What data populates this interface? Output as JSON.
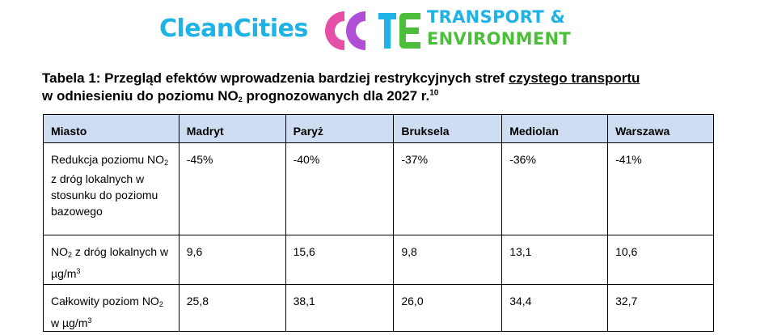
{
  "logos": {
    "cleancities": "CleanCities",
    "te_line1": "TRANSPORT &",
    "te_line2": "ENVIRONMENT",
    "colors": {
      "blue": "#1fb3e5",
      "pink": "#e64fa8",
      "purple": "#b04fd6",
      "green": "#4bbf3a"
    }
  },
  "caption": {
    "part1": "Tabela 1: Przegląd efektów wprowadzenia bardziej restrykcyjnych stref ",
    "underlined": "czystego transportu",
    "part2": "w odniesieniu do poziomu NO",
    "sub2": "2",
    "part3": " prognozowanych dla 2027 r.",
    "footnote": "10"
  },
  "table": {
    "header": [
      "Miasto",
      "Madryt",
      "Paryż",
      "Bruksela",
      "Mediolan",
      "Warszawa"
    ],
    "rows": [
      {
        "label_a": "Redukcja poziomu NO",
        "label_sub": "2",
        "label_b": " z dróg lokalnych w stosunku do poziomu bazowego",
        "values": [
          "-45%",
          "-40%",
          "-37%",
          "-36%",
          "-41%"
        ]
      },
      {
        "label_a": "NO",
        "label_sub": "2",
        "label_b": " z dróg lokalnych w µg/m",
        "label_sup": "3",
        "values": [
          "9,6",
          "15,6",
          "9,8",
          "13,1",
          "10,6"
        ]
      },
      {
        "label_a": "Całkowity poziom NO",
        "label_sub": "2",
        "label_b": " w µg/m",
        "label_sup": "3",
        "values": [
          "25,8",
          "38,1",
          "26,0",
          "34,4",
          "32,7"
        ]
      }
    ]
  }
}
